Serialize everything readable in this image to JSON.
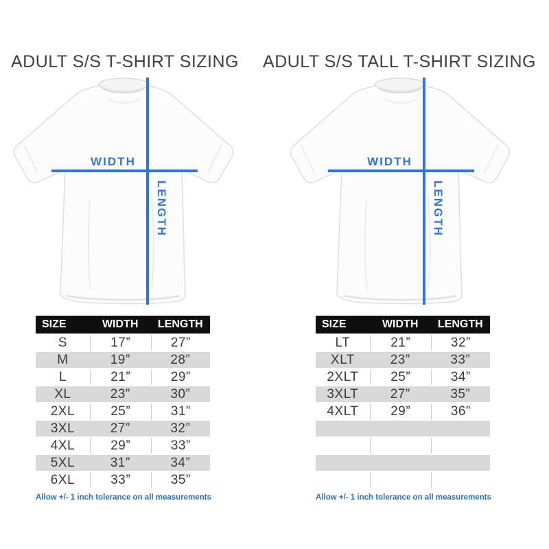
{
  "colors": {
    "accent_blue": "#2b76e3",
    "footnote_blue": "#2a6fc4",
    "header_bg": "#0f0f0f",
    "row_stripe": "#d9d9d9",
    "cell_divider": "#cccccc",
    "title_color": "#414141",
    "cell_text": "#3c3c3c"
  },
  "panels": [
    {
      "title": "ADULT S/S T-SHIRT SIZING",
      "shirt": {
        "width_label": "WIDTH",
        "length_label": "LENGTH"
      },
      "table": {
        "headers": [
          "SIZE",
          "WIDTH",
          "LENGTH"
        ],
        "rows": [
          [
            "S",
            "17”",
            "27”"
          ],
          [
            "M",
            "19”",
            "28”"
          ],
          [
            "L",
            "21”",
            "29”"
          ],
          [
            "XL",
            "23”",
            "30”"
          ],
          [
            "2XL",
            "25”",
            "31”"
          ],
          [
            "3XL",
            "27”",
            "32”"
          ],
          [
            "4XL",
            "29”",
            "33”"
          ],
          [
            "5XL",
            "31”",
            "34”"
          ],
          [
            "6XL",
            "33”",
            "35”"
          ]
        ]
      },
      "footnote": "Allow +/- 1 inch tolerance on all measurements"
    },
    {
      "title": "ADULT S/S TALL T-SHIRT SIZING",
      "shirt": {
        "width_label": "WIDTH",
        "length_label": "LENGTH"
      },
      "table": {
        "headers": [
          "SIZE",
          "WIDTH",
          "LENGTH"
        ],
        "rows": [
          [
            "LT",
            "21”",
            "32”"
          ],
          [
            "XLT",
            "23”",
            "33”"
          ],
          [
            "2XLT",
            "25”",
            "34”"
          ],
          [
            "3XLT",
            "27”",
            "35”"
          ],
          [
            "4XLT",
            "29”",
            "36”"
          ],
          [
            "",
            "",
            ""
          ],
          [
            "",
            "",
            ""
          ],
          [
            "",
            "",
            ""
          ],
          [
            "",
            "",
            ""
          ]
        ]
      },
      "footnote": "Allow +/- 1 inch tolerance on all measurements"
    }
  ]
}
